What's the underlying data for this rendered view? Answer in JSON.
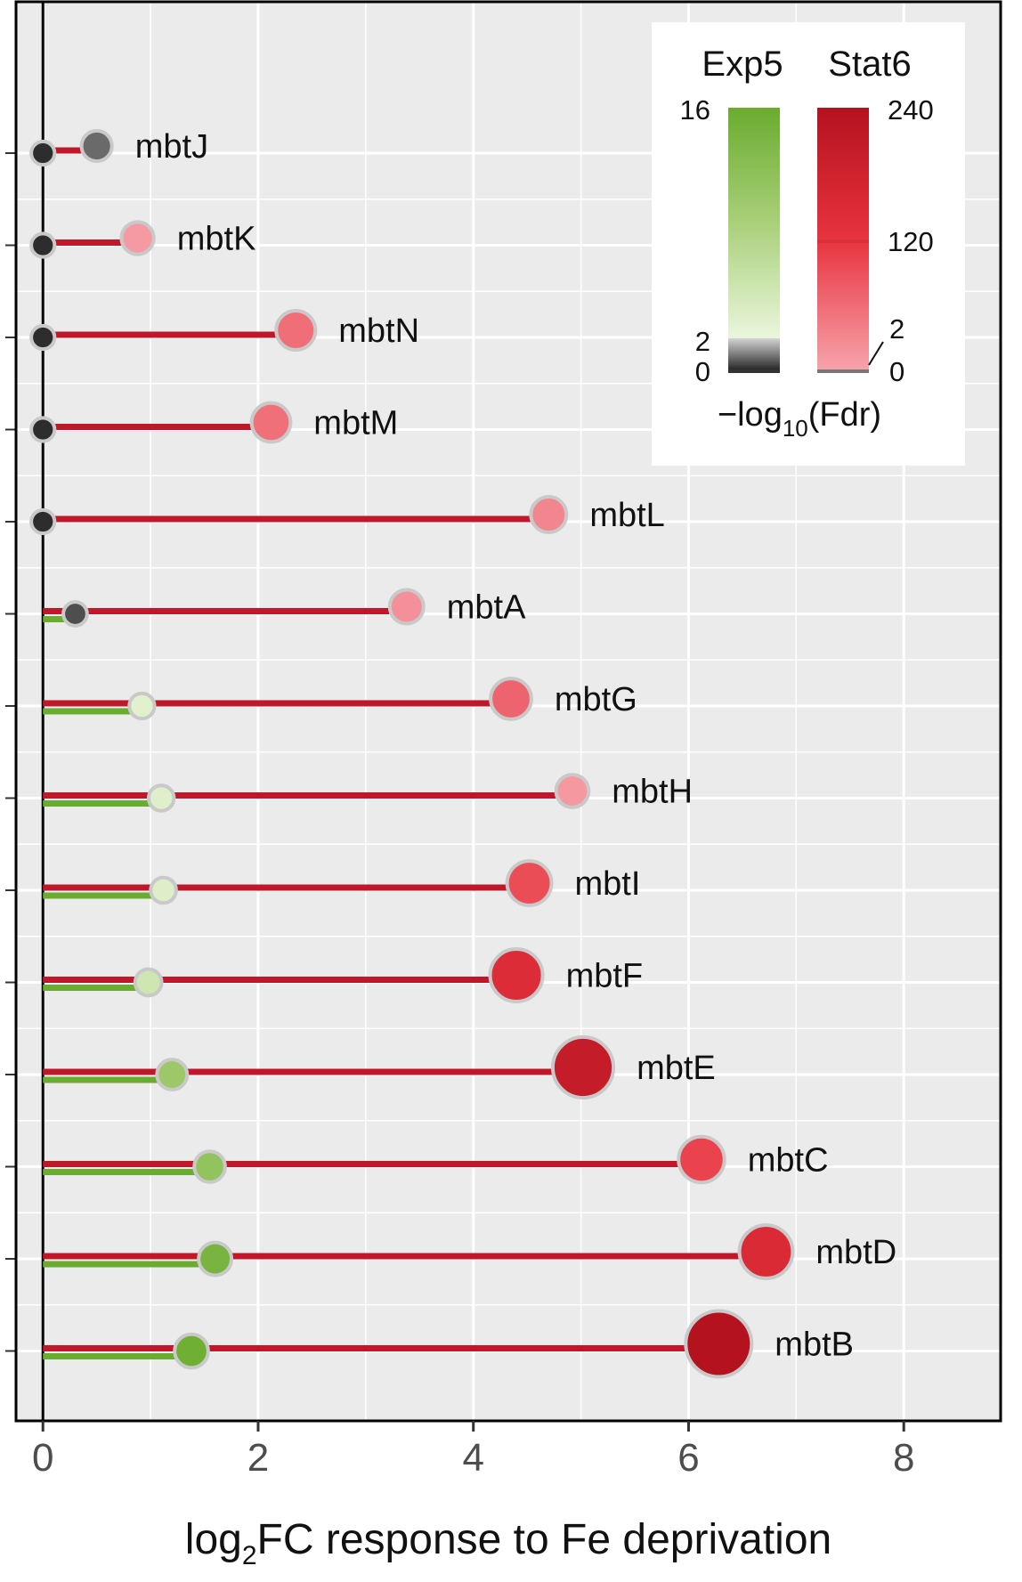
{
  "chart_data": {
    "type": "lollipop",
    "title": "",
    "xlabel_main": "log",
    "xlabel_sub": "2",
    "xlabel_rest": "FC response to Fe deprivation",
    "ylabel": "",
    "xlim": [
      -0.25,
      8.9
    ],
    "xticks": [
      0,
      2,
      4,
      6,
      8
    ],
    "grid": true,
    "colors": {
      "exp5_line": "#6aac2f",
      "stat6_line": "#c0182a",
      "marker_outline": "#c9c9c9",
      "panel_bg": "#ebebeb"
    },
    "series": [
      {
        "name": "Exp5",
        "fdr_scale": [
          0,
          16
        ],
        "threshold": 2
      },
      {
        "name": "Stat6",
        "fdr_scale": [
          0,
          240
        ],
        "threshold": 2
      }
    ],
    "genes": [
      {
        "label": "mbtJ",
        "exp5_fc": 0.0,
        "exp5_fdr": 0.3,
        "stat6_fc": 0.5,
        "stat6_fdr": 0.8
      },
      {
        "label": "mbtK",
        "exp5_fc": 0.0,
        "exp5_fdr": 0.3,
        "stat6_fc": 0.88,
        "stat6_fdr": 14
      },
      {
        "label": "mbtN",
        "exp5_fc": 0.0,
        "exp5_fdr": 0.3,
        "stat6_fc": 2.35,
        "stat6_fdr": 60
      },
      {
        "label": "mbtM",
        "exp5_fc": 0.0,
        "exp5_fdr": 0.3,
        "stat6_fc": 2.12,
        "stat6_fdr": 58
      },
      {
        "label": "mbtL",
        "exp5_fc": 0.0,
        "exp5_fdr": 0.3,
        "stat6_fc": 4.7,
        "stat6_fdr": 36
      },
      {
        "label": "mbtA",
        "exp5_fc": 0.3,
        "exp5_fdr": 0.9,
        "stat6_fc": 3.38,
        "stat6_fdr": 24
      },
      {
        "label": "mbtG",
        "exp5_fc": 0.92,
        "exp5_fdr": 3.0,
        "stat6_fc": 4.35,
        "stat6_fdr": 70
      },
      {
        "label": "mbtH",
        "exp5_fc": 1.1,
        "exp5_fdr": 3.2,
        "stat6_fc": 4.92,
        "stat6_fdr": 16
      },
      {
        "label": "mbtI",
        "exp5_fc": 1.12,
        "exp5_fdr": 3.4,
        "stat6_fc": 4.52,
        "stat6_fdr": 95
      },
      {
        "label": "mbtF",
        "exp5_fc": 0.98,
        "exp5_fdr": 5.0,
        "stat6_fc": 4.4,
        "stat6_fdr": 150
      },
      {
        "label": "mbtE",
        "exp5_fc": 1.2,
        "exp5_fdr": 10.5,
        "stat6_fc": 5.02,
        "stat6_fdr": 205
      },
      {
        "label": "mbtC",
        "exp5_fc": 1.55,
        "exp5_fdr": 11.5,
        "stat6_fc": 6.12,
        "stat6_fdr": 105
      },
      {
        "label": "mbtD",
        "exp5_fc": 1.6,
        "exp5_fdr": 14.5,
        "stat6_fc": 6.72,
        "stat6_fdr": 155
      },
      {
        "label": "mbtB",
        "exp5_fc": 1.38,
        "exp5_fdr": 15.5,
        "stat6_fc": 6.28,
        "stat6_fdr": 240
      }
    ]
  },
  "legend": {
    "head_left": "Exp5",
    "head_right": "Stat6",
    "exp5_ticks": {
      "top": "16",
      "threshold": "2",
      "bottom": "0"
    },
    "stat6_ticks": {
      "top": "240",
      "mid": "120",
      "threshold": "2",
      "bottom": "0"
    },
    "title_main": "−log",
    "title_sub": "10",
    "title_rest": "(Fdr)",
    "placement": "top-right"
  }
}
